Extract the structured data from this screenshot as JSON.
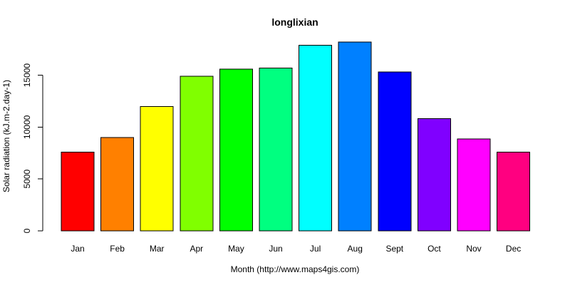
{
  "chart_data": {
    "type": "bar",
    "title": "longlixian",
    "xlabel": "Month (http://www.maps4gis.com)",
    "ylabel": "Solar radiation (kJ.m-2.day-1)",
    "categories": [
      "Jan",
      "Feb",
      "Mar",
      "Apr",
      "May",
      "Jun",
      "Jul",
      "Aug",
      "Sept",
      "Oct",
      "Nov",
      "Dec"
    ],
    "values": [
      7600,
      9000,
      12000,
      14900,
      15600,
      15700,
      17900,
      18200,
      15300,
      10800,
      8850,
      7600
    ],
    "colors": [
      "#ff0000",
      "#ff8000",
      "#ffff00",
      "#80ff00",
      "#00ff00",
      "#00ff80",
      "#00ffff",
      "#0080ff",
      "#0000ff",
      "#8000ff",
      "#ff00ff",
      "#ff0080"
    ],
    "ylim": [
      0,
      18200
    ],
    "yticks": [
      0,
      5000,
      10000,
      15000
    ],
    "grid": false,
    "legend": "none"
  }
}
